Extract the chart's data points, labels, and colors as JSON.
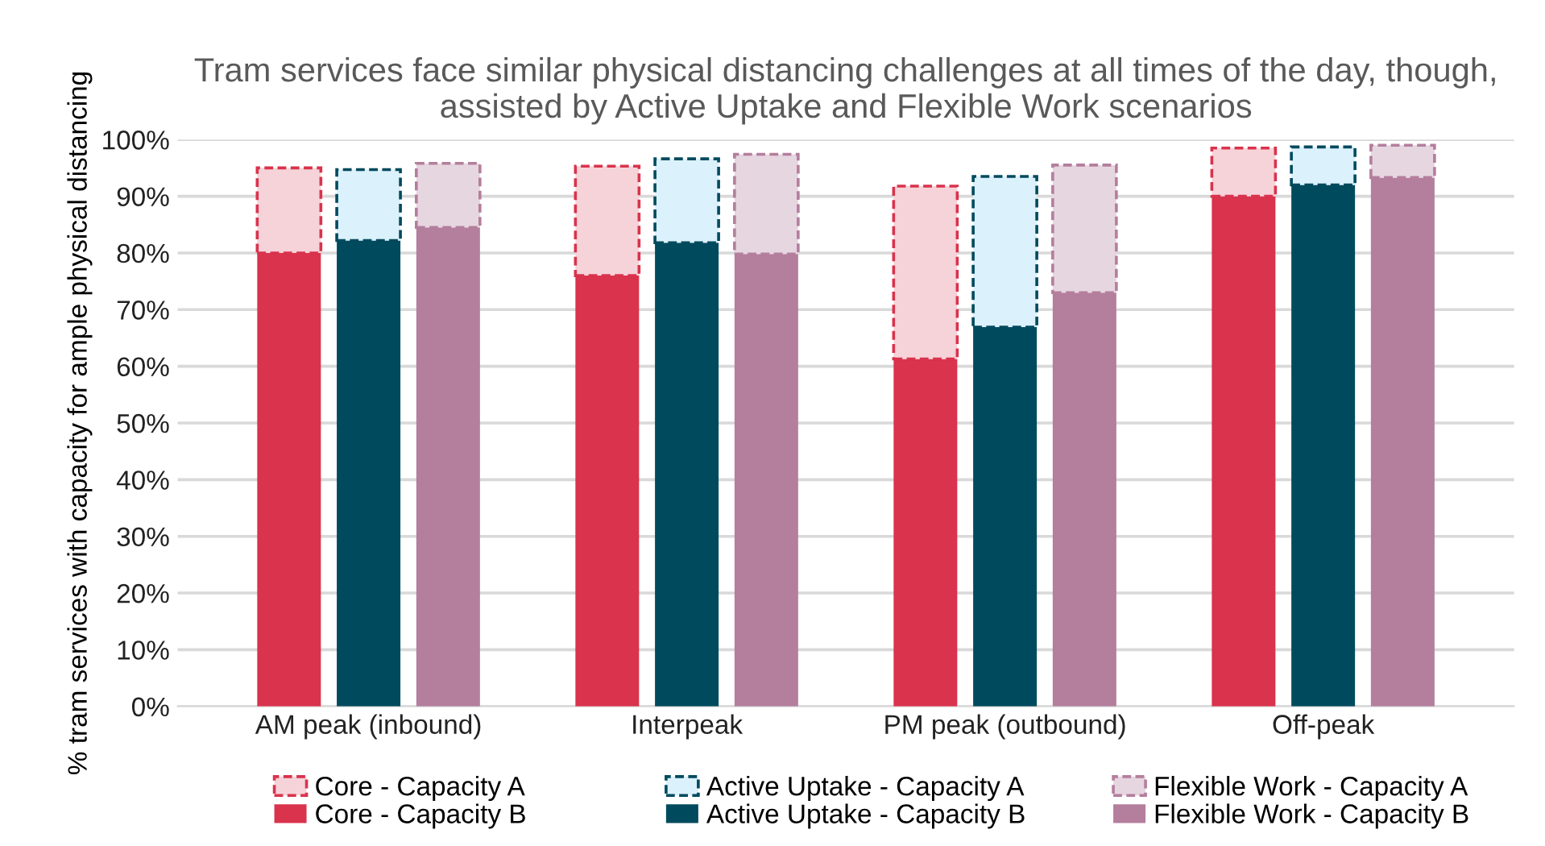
{
  "chart_data": [
    {
      "type": "bar",
      "title": "Tram services face similar physical distancing challenges at all times of the day, though, assisted by Active Uptake and Flexible Work scenarios",
      "ylabel": "% tram services with capacity for ample physical distancing",
      "categories": [
        "AM peak (inbound)",
        "Interpeak",
        "PM peak (outbound)",
        "Off-peak"
      ],
      "stacked": true,
      "series": [
        {
          "name": "Core - Capacity B",
          "color": "#d9334d",
          "values": [
            80,
            76,
            61.3,
            90
          ]
        },
        {
          "name": "Core - Capacity A",
          "color": "#f6d3d9",
          "line_style": "dashed",
          "values": [
            15,
            19.3,
            30.5,
            8.5
          ]
        }
      ],
      "ylim": [
        0,
        100
      ],
      "yticks": [
        {
          "value": 0,
          "label": "0%"
        },
        {
          "value": 10,
          "label": "10%"
        },
        {
          "value": 20,
          "label": "20%"
        },
        {
          "value": 30,
          "label": "30%"
        },
        {
          "value": 40,
          "label": "40%"
        },
        {
          "value": 50,
          "label": "50%"
        },
        {
          "value": 60,
          "label": "60%"
        },
        {
          "value": 70,
          "label": "70%"
        },
        {
          "value": 80,
          "label": "80%"
        },
        {
          "value": 90,
          "label": "90%"
        },
        {
          "value": 100,
          "label": "100%"
        }
      ],
      "grid": "y",
      "legend": "bottom"
    },
    {
      "type": "bar",
      "categories": [
        null,
        null,
        null,
        null
      ],
      "stacked": true,
      "series": [
        {
          "name": "Active Uptake - Capacity B",
          "color": "#004a5e",
          "values": [
            82.2,
            81.8,
            66.9,
            92
          ]
        },
        {
          "name": "Active Uptake - Capacity A",
          "color": "#dbf1fb",
          "line_style": "dashed",
          "values": [
            12.5,
            14.8,
            26.6,
            6.7
          ]
        }
      ],
      "ylim": [
        0,
        100
      ],
      "tick_labels": false,
      "legend": "bottom"
    },
    {
      "type": "bar",
      "categories": [
        null,
        null,
        null,
        null
      ],
      "stacked": true,
      "series": [
        {
          "name": "Flexible Work - Capacity B",
          "color": "#b47e9d",
          "values": [
            84.5,
            79.8,
            73,
            93.3
          ]
        },
        {
          "name": "Flexible Work - Capacity A",
          "color": "#e6d6e0",
          "line_style": "dashed",
          "values": [
            11.3,
            17.6,
            22.5,
            5.7
          ]
        }
      ],
      "ylim": [
        0,
        100
      ],
      "tick_labels": false,
      "legend": "bottom"
    }
  ]
}
